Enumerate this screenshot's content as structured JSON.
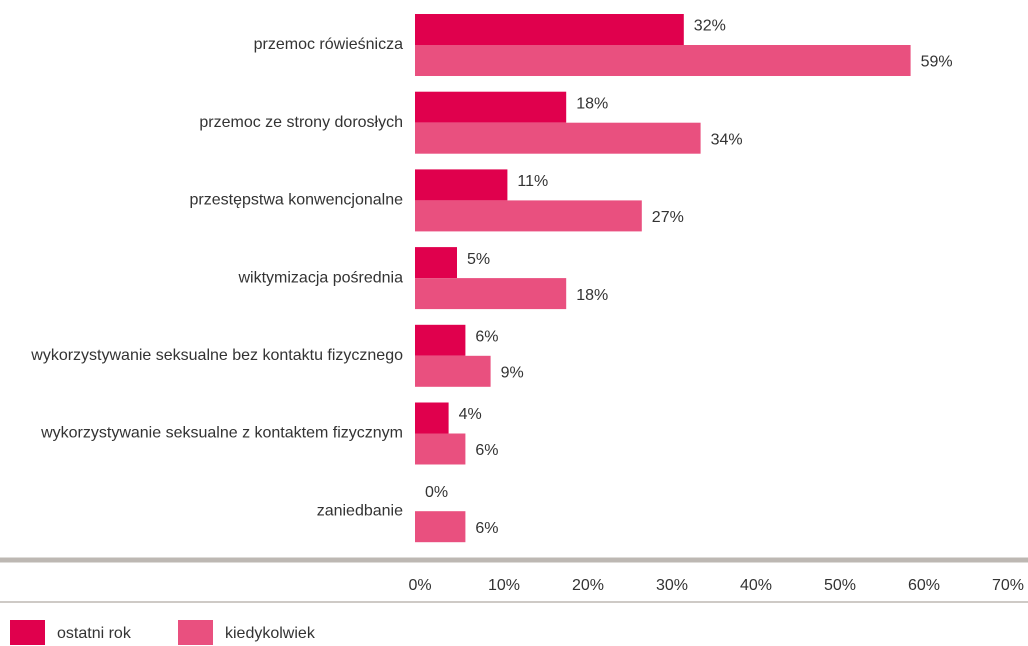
{
  "chart_data": {
    "type": "bar",
    "orientation": "horizontal",
    "categories": [
      "przemoc rówieśnicza",
      "przemoc ze strony dorosłych",
      "przestępstwa konwencjonalne",
      "wiktymizacja pośrednia",
      "wykorzystywanie seksualne bez kontaktu fizycznego",
      "wykorzystywanie seksualne z kontaktem fizycznym",
      "zaniedbanie"
    ],
    "series": [
      {
        "name": "ostatni rok",
        "color": "#e0004d",
        "values": [
          32,
          18,
          11,
          5,
          6,
          4,
          0
        ],
        "value_labels": [
          "32%",
          "18%",
          "11%",
          "5%",
          "6%",
          "4%",
          "0%"
        ]
      },
      {
        "name": "kiedykolwiek",
        "color": "#e9507f",
        "values": [
          59,
          34,
          27,
          18,
          9,
          6,
          6
        ],
        "value_labels": [
          "59%",
          "34%",
          "27%",
          "18%",
          "9%",
          "6%",
          "6%"
        ]
      }
    ],
    "xlim": [
      0,
      70
    ],
    "xticks": [
      {
        "value": 0,
        "label": "0%"
      },
      {
        "value": 10,
        "label": "10%"
      },
      {
        "value": 20,
        "label": "20%"
      },
      {
        "value": 30,
        "label": "30%"
      },
      {
        "value": 40,
        "label": "40%"
      },
      {
        "value": 50,
        "label": "50%"
      },
      {
        "value": 60,
        "label": "60%"
      },
      {
        "value": 70,
        "label": "70%"
      }
    ],
    "legend": "bottom-left"
  }
}
